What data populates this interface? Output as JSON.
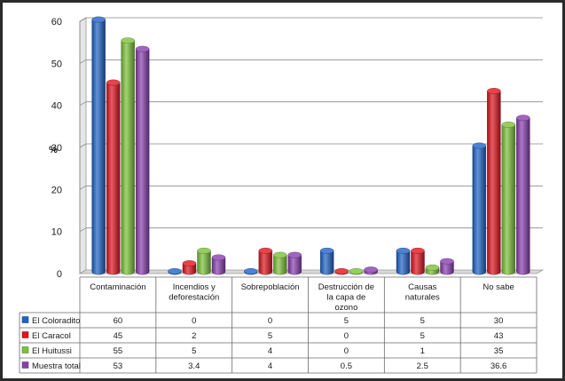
{
  "chart_data": {
    "type": "bar",
    "title": "",
    "xlabel": "",
    "ylabel": "%",
    "ylim": [
      0,
      60
    ],
    "yticks": [
      "0",
      "10",
      "20",
      "30",
      "40",
      "50",
      "60"
    ],
    "grid": true,
    "legend": "data table below plot",
    "categories": [
      [
        "Contaminación"
      ],
      [
        "Incendios y",
        "deforestación"
      ],
      [
        "Sobrepoblación"
      ],
      [
        "Destrucción de",
        "la capa de",
        "ozono"
      ],
      [
        "Causas",
        "naturales"
      ],
      [
        "No sabe"
      ]
    ],
    "series": [
      {
        "name": "El Coloradito",
        "color": "#1f63c6",
        "values": [
          60,
          0,
          0,
          5,
          5,
          30
        ],
        "labels": [
          "60",
          "0",
          "0",
          "5",
          "5",
          "30"
        ]
      },
      {
        "name": "El Caracol",
        "color": "#e0141e",
        "values": [
          45,
          2,
          5,
          0,
          5,
          43
        ],
        "labels": [
          "45",
          "2",
          "5",
          "0",
          "5",
          "43"
        ]
      },
      {
        "name": "El Huitussi",
        "color": "#7cc13a",
        "values": [
          55,
          5,
          4,
          0,
          1,
          35
        ],
        "labels": [
          "55",
          "5",
          "4",
          "0",
          "1",
          "35"
        ]
      },
      {
        "name": "Muestra total",
        "color": "#8a3fb0",
        "values": [
          53,
          3.4,
          4,
          0.5,
          2.5,
          36.6
        ],
        "labels": [
          "53",
          "3.4",
          "4",
          "0.5",
          "2.5",
          "36.6"
        ]
      }
    ]
  }
}
